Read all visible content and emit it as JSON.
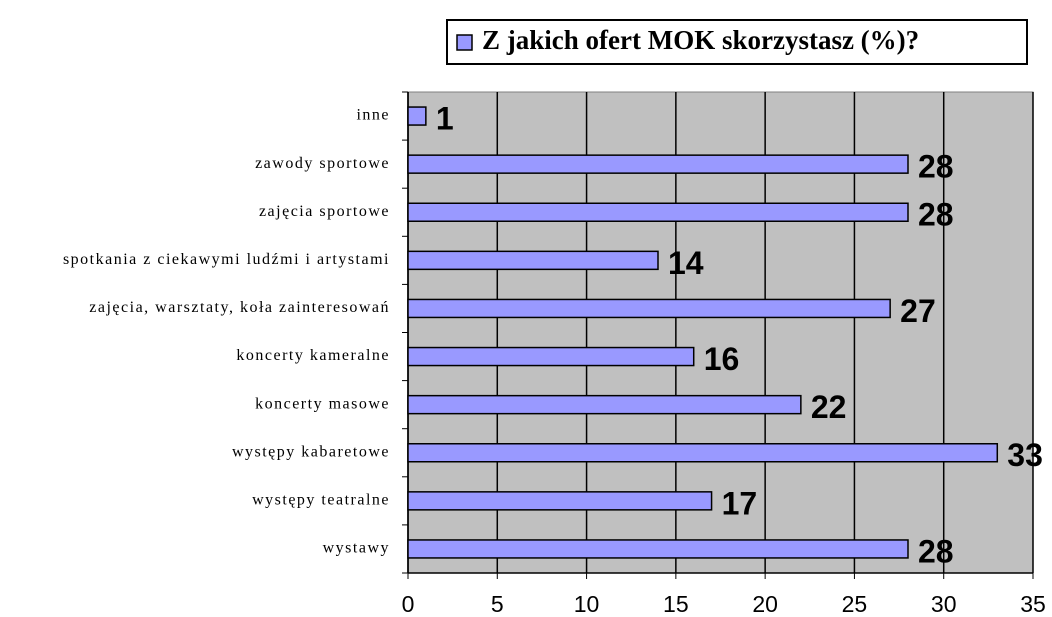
{
  "chart_data": {
    "type": "bar",
    "orientation": "horizontal",
    "categories": [
      "inne",
      "zawody sportowe",
      "zajęcia sportowe",
      "spotkania z ciekawymi ludźmi i artystami",
      "zajęcia, warsztaty, koła zainteresowań",
      "koncerty kameralne",
      "koncerty masowe",
      "występy kabaretowe",
      "występy teatralne",
      "wystawy"
    ],
    "series": [
      {
        "name": "Z jakich ofert MOK skorzystasz (%)?",
        "color": "#9999ff",
        "values": [
          1,
          28,
          28,
          14,
          27,
          16,
          22,
          33,
          17,
          28
        ]
      }
    ],
    "xlim": [
      0,
      35
    ],
    "xticks": [
      0,
      5,
      10,
      15,
      20,
      25,
      30,
      35
    ],
    "grid": true,
    "legend": "top"
  }
}
